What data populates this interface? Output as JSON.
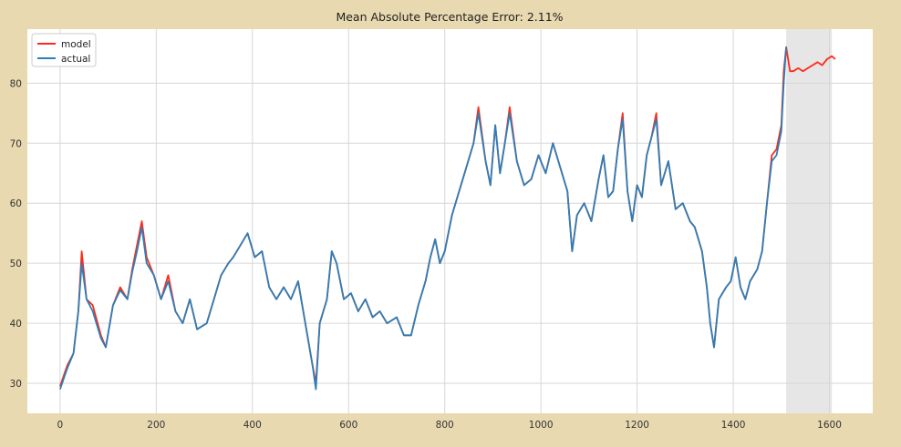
{
  "chart_data": {
    "type": "line",
    "title": "Mean Absolute Percentage Error: 2.11%",
    "xlabel": "",
    "ylabel": "",
    "xlim": [
      -68,
      1690
    ],
    "ylim": [
      25,
      89
    ],
    "x_ticks": [
      0,
      200,
      400,
      600,
      800,
      1000,
      1200,
      1400,
      1600
    ],
    "y_ticks": [
      30,
      40,
      50,
      60,
      70,
      80
    ],
    "grid": true,
    "legend_position": "top-left",
    "shaded_region": [
      1510,
      1605
    ],
    "series": [
      {
        "name": "model",
        "color": "#ff2a1a",
        "points": [
          [
            0,
            29.5
          ],
          [
            15,
            33
          ],
          [
            28,
            35
          ],
          [
            38,
            42
          ],
          [
            45,
            52
          ],
          [
            55,
            44
          ],
          [
            68,
            43
          ],
          [
            85,
            38
          ],
          [
            95,
            36
          ],
          [
            110,
            43
          ],
          [
            125,
            46
          ],
          [
            140,
            44
          ],
          [
            150,
            49
          ],
          [
            160,
            53
          ],
          [
            170,
            57
          ],
          [
            180,
            51
          ],
          [
            195,
            48
          ],
          [
            210,
            44
          ],
          [
            225,
            48
          ],
          [
            240,
            42
          ],
          [
            255,
            40
          ],
          [
            270,
            44
          ],
          [
            285,
            39
          ],
          [
            305,
            40
          ],
          [
            320,
            44
          ],
          [
            335,
            48
          ],
          [
            350,
            50
          ],
          [
            360,
            51
          ],
          [
            375,
            53
          ],
          [
            390,
            55
          ],
          [
            405,
            51
          ],
          [
            420,
            52
          ],
          [
            435,
            46
          ],
          [
            450,
            44
          ],
          [
            465,
            46
          ],
          [
            480,
            44
          ],
          [
            495,
            47
          ],
          [
            510,
            40
          ],
          [
            525,
            33
          ],
          [
            532,
            30
          ],
          [
            540,
            40
          ],
          [
            555,
            44
          ],
          [
            565,
            52
          ],
          [
            575,
            50
          ],
          [
            590,
            44
          ],
          [
            605,
            45
          ],
          [
            620,
            42
          ],
          [
            635,
            44
          ],
          [
            650,
            41
          ],
          [
            665,
            42
          ],
          [
            680,
            40
          ],
          [
            700,
            41
          ],
          [
            715,
            38
          ],
          [
            730,
            38
          ],
          [
            745,
            43
          ],
          [
            760,
            47
          ],
          [
            770,
            51
          ],
          [
            780,
            54
          ],
          [
            790,
            50
          ],
          [
            800,
            52
          ],
          [
            815,
            58
          ],
          [
            830,
            62
          ],
          [
            845,
            66
          ],
          [
            860,
            70
          ],
          [
            870,
            76
          ],
          [
            885,
            67
          ],
          [
            895,
            63
          ],
          [
            905,
            73
          ],
          [
            915,
            65
          ],
          [
            925,
            70
          ],
          [
            935,
            76
          ],
          [
            950,
            67
          ],
          [
            965,
            63
          ],
          [
            980,
            64
          ],
          [
            995,
            68
          ],
          [
            1010,
            65
          ],
          [
            1025,
            70
          ],
          [
            1040,
            66
          ],
          [
            1055,
            62
          ],
          [
            1065,
            52
          ],
          [
            1075,
            58
          ],
          [
            1090,
            60
          ],
          [
            1105,
            57
          ],
          [
            1120,
            64
          ],
          [
            1130,
            68
          ],
          [
            1140,
            61
          ],
          [
            1150,
            62
          ],
          [
            1160,
            69
          ],
          [
            1170,
            75
          ],
          [
            1180,
            62
          ],
          [
            1190,
            57
          ],
          [
            1200,
            63
          ],
          [
            1210,
            61
          ],
          [
            1220,
            68
          ],
          [
            1230,
            71
          ],
          [
            1240,
            75
          ],
          [
            1250,
            63
          ],
          [
            1265,
            67
          ],
          [
            1280,
            59
          ],
          [
            1295,
            60
          ],
          [
            1310,
            57
          ],
          [
            1320,
            56
          ],
          [
            1335,
            52
          ],
          [
            1345,
            46
          ],
          [
            1352,
            40
          ],
          [
            1360,
            36
          ],
          [
            1370,
            44
          ],
          [
            1385,
            46
          ],
          [
            1395,
            47
          ],
          [
            1405,
            51
          ],
          [
            1415,
            46
          ],
          [
            1425,
            44
          ],
          [
            1435,
            47
          ],
          [
            1450,
            49
          ],
          [
            1460,
            52
          ],
          [
            1470,
            60
          ],
          [
            1480,
            68
          ],
          [
            1490,
            69
          ],
          [
            1500,
            73
          ],
          [
            1505,
            82
          ],
          [
            1510,
            86
          ],
          [
            1518,
            82
          ],
          [
            1525,
            82
          ],
          [
            1535,
            82.5
          ],
          [
            1545,
            82
          ],
          [
            1555,
            82.5
          ],
          [
            1565,
            83
          ],
          [
            1575,
            83.5
          ],
          [
            1585,
            83
          ],
          [
            1595,
            84
          ],
          [
            1605,
            84.5
          ],
          [
            1612,
            84
          ]
        ]
      },
      {
        "name": "actual",
        "color": "#2c7fb8",
        "points": [
          [
            0,
            29
          ],
          [
            15,
            32.5
          ],
          [
            28,
            35
          ],
          [
            38,
            42
          ],
          [
            45,
            50
          ],
          [
            55,
            44
          ],
          [
            68,
            42
          ],
          [
            85,
            37.5
          ],
          [
            95,
            36
          ],
          [
            110,
            43
          ],
          [
            125,
            45.5
          ],
          [
            140,
            44
          ],
          [
            150,
            48.5
          ],
          [
            160,
            52
          ],
          [
            170,
            56
          ],
          [
            180,
            50
          ],
          [
            195,
            48
          ],
          [
            210,
            44
          ],
          [
            225,
            47
          ],
          [
            240,
            42
          ],
          [
            255,
            40
          ],
          [
            270,
            44
          ],
          [
            285,
            39
          ],
          [
            305,
            40
          ],
          [
            320,
            44
          ],
          [
            335,
            48
          ],
          [
            350,
            50
          ],
          [
            360,
            51
          ],
          [
            375,
            53
          ],
          [
            390,
            55
          ],
          [
            405,
            51
          ],
          [
            420,
            52
          ],
          [
            435,
            46
          ],
          [
            450,
            44
          ],
          [
            465,
            46
          ],
          [
            480,
            44
          ],
          [
            495,
            47
          ],
          [
            510,
            40
          ],
          [
            525,
            33
          ],
          [
            532,
            29
          ],
          [
            540,
            40
          ],
          [
            555,
            44
          ],
          [
            565,
            52
          ],
          [
            575,
            50
          ],
          [
            590,
            44
          ],
          [
            605,
            45
          ],
          [
            620,
            42
          ],
          [
            635,
            44
          ],
          [
            650,
            41
          ],
          [
            665,
            42
          ],
          [
            680,
            40
          ],
          [
            700,
            41
          ],
          [
            715,
            38
          ],
          [
            730,
            38
          ],
          [
            745,
            43
          ],
          [
            760,
            47
          ],
          [
            770,
            51
          ],
          [
            780,
            54
          ],
          [
            790,
            50
          ],
          [
            800,
            52
          ],
          [
            815,
            58
          ],
          [
            830,
            62
          ],
          [
            845,
            66
          ],
          [
            860,
            70
          ],
          [
            870,
            75
          ],
          [
            885,
            67
          ],
          [
            895,
            63
          ],
          [
            905,
            73
          ],
          [
            915,
            65
          ],
          [
            925,
            70
          ],
          [
            935,
            75
          ],
          [
            950,
            67
          ],
          [
            965,
            63
          ],
          [
            980,
            64
          ],
          [
            995,
            68
          ],
          [
            1010,
            65
          ],
          [
            1025,
            70
          ],
          [
            1040,
            66
          ],
          [
            1055,
            62
          ],
          [
            1065,
            52
          ],
          [
            1075,
            58
          ],
          [
            1090,
            60
          ],
          [
            1105,
            57
          ],
          [
            1120,
            64
          ],
          [
            1130,
            68
          ],
          [
            1140,
            61
          ],
          [
            1150,
            62
          ],
          [
            1160,
            69
          ],
          [
            1170,
            74
          ],
          [
            1180,
            62
          ],
          [
            1190,
            57
          ],
          [
            1200,
            63
          ],
          [
            1210,
            61
          ],
          [
            1220,
            68
          ],
          [
            1230,
            71
          ],
          [
            1240,
            74
          ],
          [
            1250,
            63
          ],
          [
            1265,
            67
          ],
          [
            1280,
            59
          ],
          [
            1295,
            60
          ],
          [
            1310,
            57
          ],
          [
            1320,
            56
          ],
          [
            1335,
            52
          ],
          [
            1345,
            46
          ],
          [
            1352,
            40
          ],
          [
            1360,
            36
          ],
          [
            1370,
            44
          ],
          [
            1385,
            46
          ],
          [
            1395,
            47
          ],
          [
            1405,
            51
          ],
          [
            1415,
            46
          ],
          [
            1425,
            44
          ],
          [
            1435,
            47
          ],
          [
            1450,
            49
          ],
          [
            1460,
            52
          ],
          [
            1470,
            60
          ],
          [
            1480,
            67
          ],
          [
            1490,
            68
          ],
          [
            1500,
            72
          ],
          [
            1505,
            80
          ],
          [
            1510,
            86
          ]
        ]
      }
    ]
  }
}
